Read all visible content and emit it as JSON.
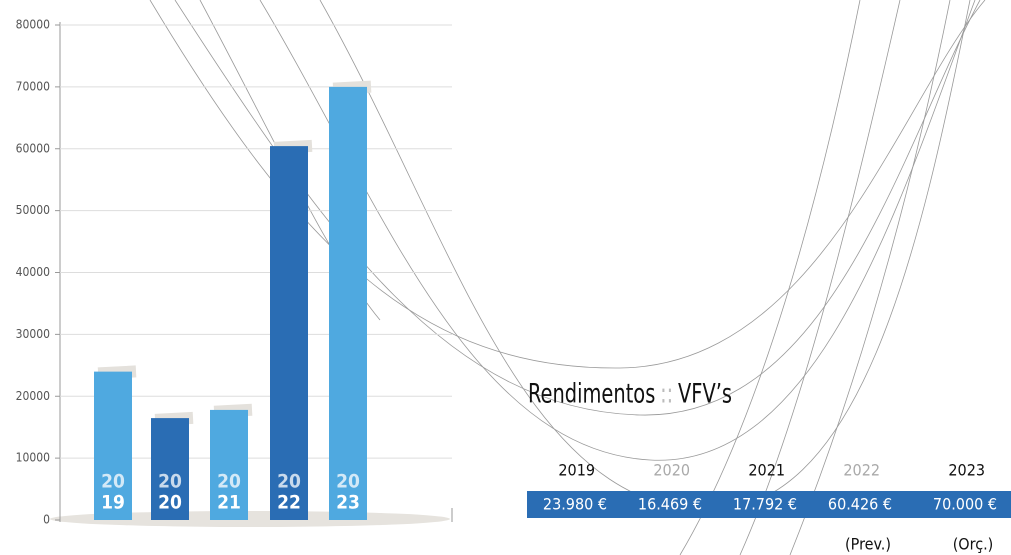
{
  "chart_data": {
    "type": "bar",
    "categories": [
      [
        "20",
        "19"
      ],
      [
        "20",
        "20"
      ],
      [
        "20",
        "21"
      ],
      [
        "20",
        "22"
      ],
      [
        "20",
        "23"
      ]
    ],
    "values": [
      23980,
      16469,
      17792,
      60426,
      70000
    ],
    "value_labels": [
      "23.980 €",
      "16.469 €",
      "17.792 €",
      "60.426 €",
      "70.000 €"
    ],
    "colors": [
      "#4fa9e0",
      "#2a6db4",
      "#4fa9e0",
      "#2a6db4",
      "#4fa9e0"
    ],
    "ylim": [
      0,
      80000
    ],
    "yticks": [
      0,
      10000,
      20000,
      30000,
      40000,
      50000,
      60000,
      70000,
      80000
    ],
    "grid": true
  },
  "table": {
    "title": {
      "main": "Rendimentos",
      "separator": "::",
      "name": "VFV’s"
    },
    "columns": [
      {
        "year": "2019"
      },
      {
        "year": "2020"
      },
      {
        "year": "2021"
      },
      {
        "year": "2022",
        "note": "(Prev.)"
      },
      {
        "year": "2023",
        "note": "(Orç.)"
      }
    ]
  }
}
